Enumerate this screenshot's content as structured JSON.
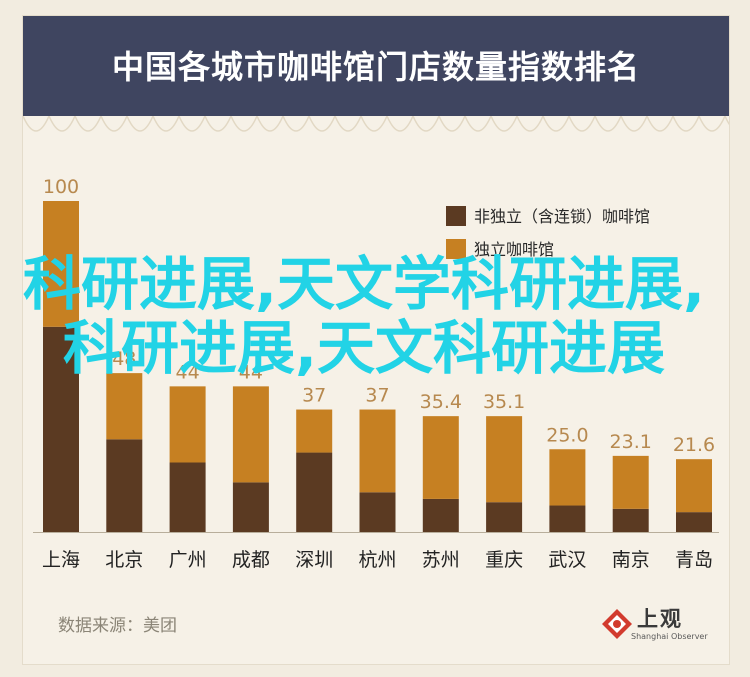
{
  "chart_data": {
    "type": "bar",
    "title": "中国各城市咖啡馆门店数量指数排名",
    "categories": [
      "上海",
      "北京",
      "广州",
      "成都",
      "深圳",
      "杭州",
      "苏州",
      "重庆",
      "武汉",
      "南京",
      "青岛"
    ],
    "series": [
      {
        "name": "非独立（含连锁）咖啡馆",
        "color": "#5b3a22",
        "values": [
          62,
          28,
          21,
          15,
          24,
          12,
          10,
          9,
          8,
          7,
          6
        ]
      },
      {
        "name": "独立咖啡馆",
        "color": "#c68022",
        "values": [
          38,
          20,
          23,
          29,
          13,
          25,
          25,
          26,
          17,
          16,
          16
        ]
      }
    ],
    "value_labels": [
      "100",
      "48",
      "44",
      "44",
      "37",
      "37",
      "35.4",
      "35.1",
      "25.0",
      "23.1",
      "21.6"
    ],
    "ylim": [
      0,
      100
    ],
    "legend_position": "top-right"
  },
  "source": "数据来源：美团",
  "logo": {
    "name": "上观",
    "subtitle": "Shanghai Observer"
  },
  "watermark": "科研进展,天文学科研进展,科研进展,天文科研进展"
}
